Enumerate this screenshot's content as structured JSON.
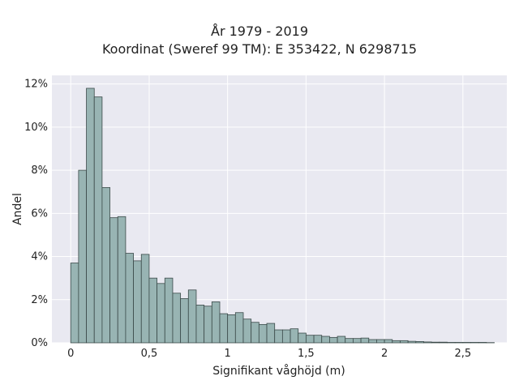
{
  "chart_data": {
    "type": "bar",
    "title": [
      "År 1979 - 2019",
      "Koordinat (Sweref 99 TM): E 353422, N 6298715"
    ],
    "xlabel": "Signifikant våghöjd (m)",
    "ylabel": "Andel",
    "xlim": [
      -0.12,
      2.78
    ],
    "ylim": [
      0,
      12.4
    ],
    "x_ticks": [
      0,
      0.5,
      1,
      1.5,
      2,
      2.5
    ],
    "x_tick_labels": [
      "0",
      "0,5",
      "1",
      "1,5",
      "2",
      "2,5"
    ],
    "y_ticks": [
      0,
      2,
      4,
      6,
      8,
      10,
      12
    ],
    "y_tick_labels": [
      "0%",
      "2%",
      "4%",
      "6%",
      "8%",
      "10%",
      "12%"
    ],
    "bin_width": 0.05,
    "bin_start": 0,
    "values": [
      3.7,
      8.0,
      11.8,
      11.4,
      7.2,
      5.8,
      5.85,
      4.15,
      3.8,
      4.1,
      3.0,
      2.75,
      3.0,
      2.3,
      2.05,
      2.45,
      1.75,
      1.7,
      1.9,
      1.35,
      1.3,
      1.4,
      1.1,
      0.95,
      0.85,
      0.9,
      0.6,
      0.6,
      0.65,
      0.45,
      0.35,
      0.35,
      0.3,
      0.25,
      0.3,
      0.2,
      0.2,
      0.22,
      0.15,
      0.15,
      0.15,
      0.1,
      0.1,
      0.07,
      0.06,
      0.04,
      0.03,
      0.03,
      0.02,
      0.02,
      0.02,
      0.02,
      0.02,
      0.01
    ],
    "grid": true,
    "colors": {
      "bar_fill": "#98b4b3",
      "bar_edge": "#3b4a49",
      "plot_bg": "#e9e9f1",
      "grid": "#ffffff"
    }
  }
}
